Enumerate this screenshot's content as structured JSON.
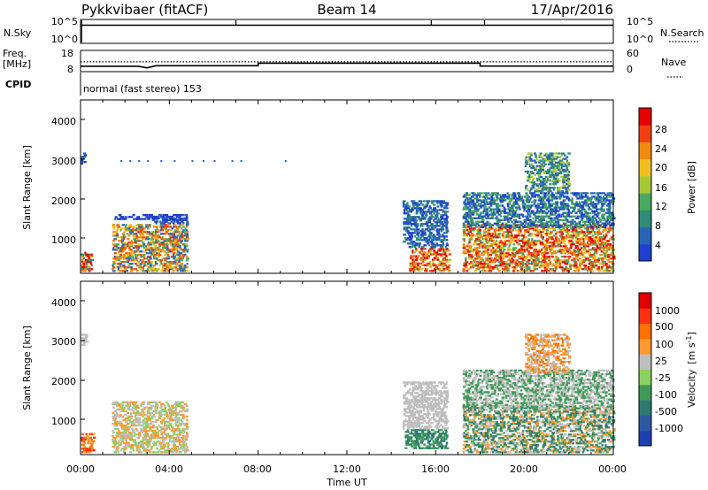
{
  "header": {
    "radar": "Pykkvibaer (fitACF)",
    "beam": "Beam 14",
    "date": "17/Apr/2016"
  },
  "nsky_panel": {
    "left_label": "N.Sky",
    "right_label": "N.Search",
    "left_ticks": [
      "10^5",
      "10^0"
    ],
    "right_ticks": [
      "10^5",
      "10^0"
    ]
  },
  "freq_panel": {
    "left_label_line1": "Freq.",
    "left_label_line2": "[MHz]",
    "right_label": "Nave",
    "left_ticks": [
      "18",
      "8"
    ],
    "right_ticks": [
      "60",
      "0"
    ]
  },
  "cpid": {
    "label": "CPID",
    "text": "normal (fast stereo) 153"
  },
  "x_axis": {
    "ticks": [
      "00:00",
      "04:00",
      "08:00",
      "12:00",
      "16:00",
      "20:00",
      "00:00"
    ],
    "label": "Time UT"
  },
  "power_panel": {
    "ylabel": "Slant Range [km]",
    "yticks": [
      "4000",
      "3000",
      "2000",
      "1000"
    ],
    "colorbar_label": "Power [dB]",
    "colorbar_ticks": [
      "28",
      "24",
      "20",
      "16",
      "12",
      "8",
      "4"
    ]
  },
  "velocity_panel": {
    "ylabel": "Slant Range [km]",
    "yticks": [
      "4000",
      "3000",
      "2000",
      "1000"
    ],
    "colorbar_label_main": "Velocity",
    "colorbar_label_units": "[m s",
    "colorbar_label_sup": "-1",
    "colorbar_label_close": "]",
    "colorbar_ticks": [
      "1000",
      "500",
      "100",
      "25",
      "-25",
      "-100",
      "-500",
      "-1000"
    ]
  },
  "colors": {
    "power_scale": [
      "#1f3fd0",
      "#2a64b4",
      "#2e8c78",
      "#4aa860",
      "#a8c83a",
      "#f0c020",
      "#f08a10",
      "#f04010",
      "#e60000"
    ],
    "velocity_scale": [
      "#1f3fb0",
      "#2c5aa0",
      "#2e7a70",
      "#3f9a58",
      "#8cd060",
      "#bebebe",
      "#ff9a30",
      "#ff7000",
      "#ff3010",
      "#e00000"
    ]
  },
  "chart_data": [
    {
      "type": "line",
      "name": "nsky-line",
      "x": [
        0,
        1,
        2,
        3,
        4,
        5,
        6,
        7,
        8,
        9,
        10,
        11,
        12,
        13,
        14,
        15,
        16,
        17,
        18,
        19,
        20,
        21,
        22,
        23,
        24
      ],
      "y_log": [
        3.9,
        3.9,
        3.9,
        3.9,
        3.9,
        3.9,
        3.9,
        3.9,
        3.9,
        3.9,
        3.9,
        3.9,
        3.9,
        3.9,
        3.9,
        3.9,
        3.9,
        3.9,
        3.9,
        3.9,
        3.9,
        3.9,
        3.9,
        3.9,
        3.9
      ],
      "ylim_log": [
        0,
        5
      ],
      "spikes_hours": [
        0.05,
        7.0,
        15.8,
        18.2
      ]
    },
    {
      "type": "line",
      "name": "freq-line",
      "x": [
        0,
        2.6,
        3.0,
        3.4,
        8.0,
        8.0,
        18.0,
        18.0,
        24
      ],
      "freq_mhz": [
        10.3,
        10.3,
        9.5,
        10.6,
        10.6,
        11.9,
        11.9,
        10.4,
        10.4
      ],
      "nave_dotted": 12.6,
      "ylim": [
        8,
        18
      ]
    },
    {
      "type": "heatmap",
      "name": "power-map",
      "x_hours": [
        0,
        24
      ],
      "y_km": [
        180,
        4500
      ],
      "regions": [
        {
          "t0": 0.0,
          "t1": 0.5,
          "r0": 200,
          "r1": 700,
          "c": [
            2,
            6,
            8
          ]
        },
        {
          "t0": 0.0,
          "t1": 0.2,
          "r0": 2900,
          "r1": 3200,
          "c": [
            0,
            1
          ]
        },
        {
          "t0": 1.4,
          "t1": 4.8,
          "r0": 200,
          "r1": 1400,
          "c": [
            1,
            3,
            5,
            6,
            7
          ]
        },
        {
          "t0": 3.2,
          "t1": 4.8,
          "r0": 1400,
          "r1": 1650,
          "c": [
            0,
            1
          ]
        },
        {
          "t0": 1.5,
          "t1": 4.5,
          "r0": 1500,
          "r1": 1650,
          "c": [
            0
          ]
        },
        {
          "t0": 14.8,
          "t1": 16.6,
          "r0": 200,
          "r1": 800,
          "c": [
            4,
            6,
            7,
            8
          ]
        },
        {
          "t0": 14.5,
          "t1": 16.5,
          "r0": 800,
          "r1": 2000,
          "c": [
            0,
            1,
            2
          ]
        },
        {
          "t0": 17.2,
          "t1": 24.0,
          "r0": 200,
          "r1": 1400,
          "c": [
            3,
            5,
            6,
            7,
            8
          ]
        },
        {
          "t0": 17.2,
          "t1": 24.0,
          "r0": 1300,
          "r1": 2200,
          "c": [
            0,
            1,
            2,
            3
          ]
        },
        {
          "t0": 20.0,
          "t1": 22.0,
          "r0": 2200,
          "r1": 3200,
          "c": [
            1,
            2,
            4
          ]
        }
      ]
    },
    {
      "type": "heatmap",
      "name": "velocity-map",
      "x_hours": [
        0,
        24
      ],
      "y_km": [
        180,
        4500
      ],
      "regions": [
        {
          "t0": 0.0,
          "t1": 0.6,
          "r0": 200,
          "r1": 700,
          "c": [
            6,
            7,
            8
          ]
        },
        {
          "t0": 0.0,
          "t1": 0.25,
          "r0": 2900,
          "r1": 3200,
          "c": [
            5
          ]
        },
        {
          "t0": 1.4,
          "t1": 4.8,
          "r0": 200,
          "r1": 1500,
          "c": [
            5,
            4,
            6
          ]
        },
        {
          "t0": 14.6,
          "t1": 16.5,
          "r0": 300,
          "r1": 800,
          "c": [
            2,
            3
          ]
        },
        {
          "t0": 14.5,
          "t1": 16.5,
          "r0": 800,
          "r1": 2000,
          "c": [
            5
          ]
        },
        {
          "t0": 17.2,
          "t1": 24.0,
          "r0": 200,
          "r1": 1400,
          "c": [
            2,
            3,
            5,
            6
          ]
        },
        {
          "t0": 17.2,
          "t1": 24.0,
          "r0": 1300,
          "r1": 2300,
          "c": [
            5,
            3
          ]
        },
        {
          "t0": 20.0,
          "t1": 22.0,
          "r0": 2200,
          "r1": 3200,
          "c": [
            5,
            6,
            7
          ]
        }
      ]
    }
  ]
}
